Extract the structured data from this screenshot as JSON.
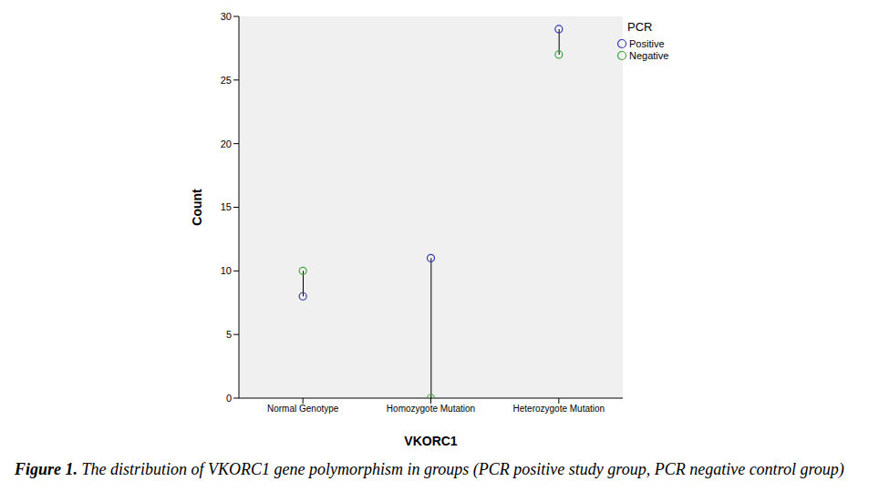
{
  "chart_data": {
    "type": "scatter",
    "caption": "Figure 1. The distribution of VKORC1 gene polymorphism in groups (PCR positive study group, PCR negative control group)",
    "xlabel": "VKORC1",
    "ylabel": "Count",
    "legend_title": "PCR",
    "categories": [
      "Normal Genotype",
      "Homozygote Mutation",
      "Heterozygote Mutation"
    ],
    "series": [
      {
        "name": "Positive",
        "color": "#3535b5",
        "values": [
          8,
          11,
          29
        ]
      },
      {
        "name": "Negative",
        "color": "#3aa43a",
        "values": [
          10,
          0,
          27
        ]
      }
    ],
    "ylim": [
      0,
      30
    ],
    "yticks": [
      0,
      5,
      10,
      15,
      20,
      25,
      30
    ],
    "grid": false,
    "legend": "upper right",
    "marker": "hollow circle"
  }
}
